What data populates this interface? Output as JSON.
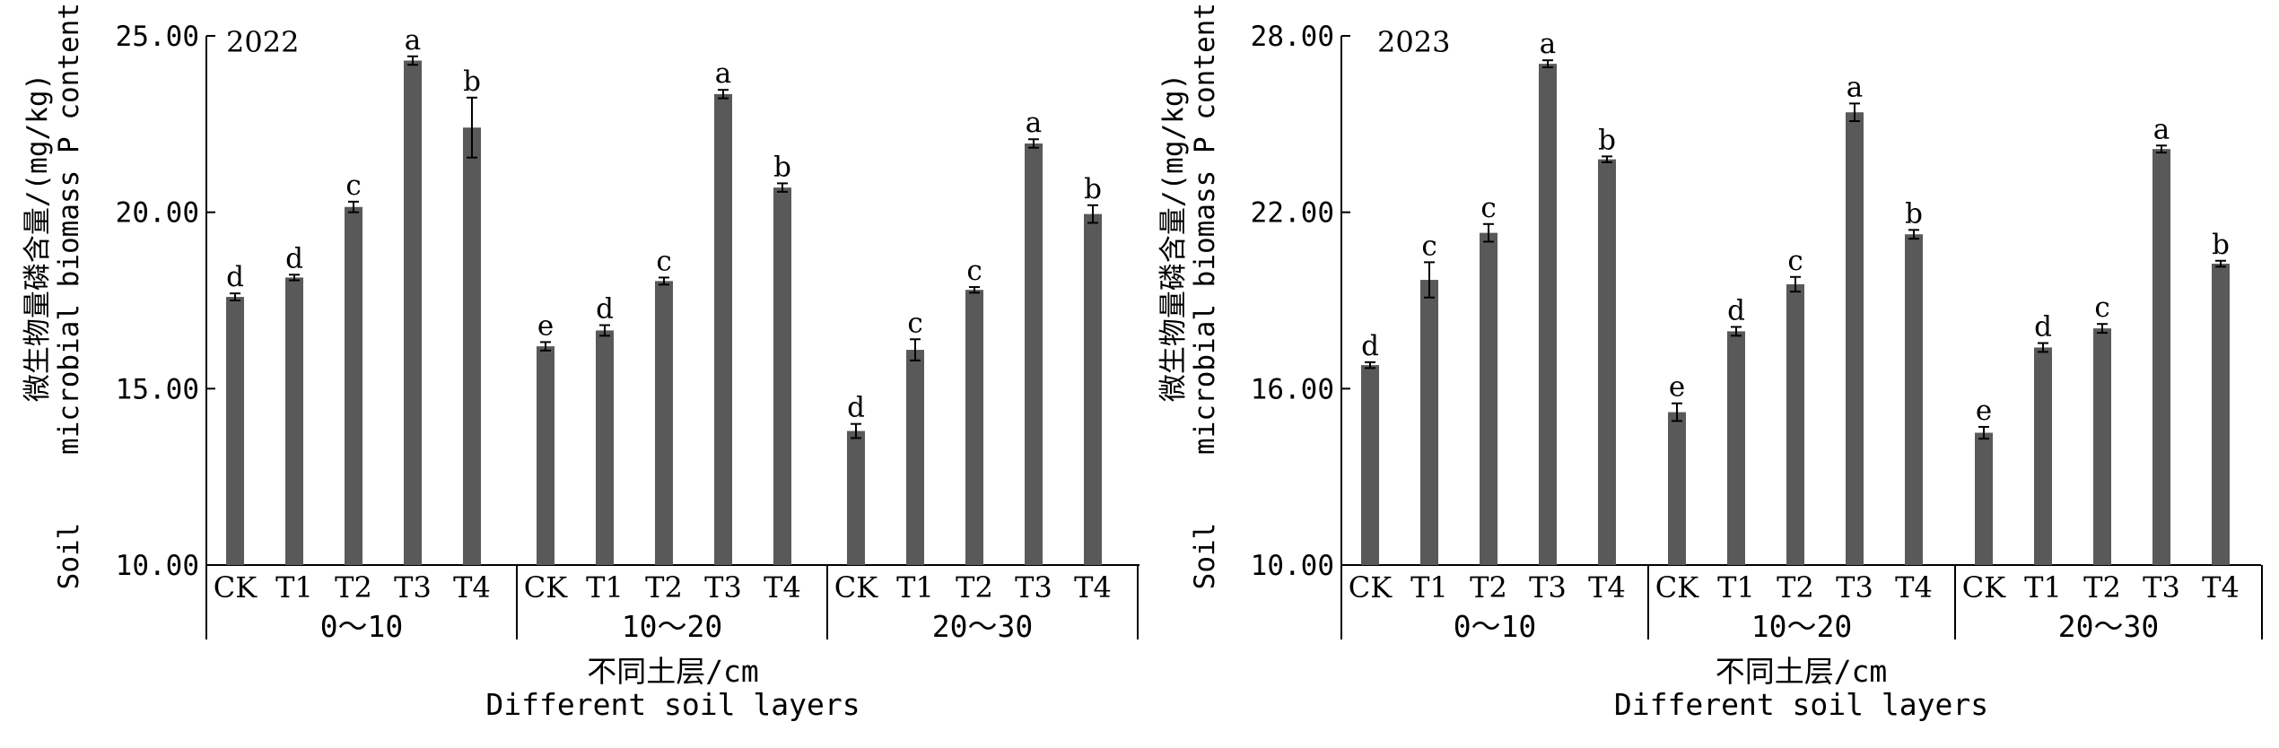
{
  "colors": {
    "bar": "#595959",
    "axis": "#000000",
    "error": "#000000"
  },
  "chart_data": [
    {
      "type": "bar",
      "annotation": "2022",
      "ylabel_cn": "微生物量磷含量/(mg/kg)",
      "ylabel_en_1": "microbial biomass P content",
      "ylabel_en_2": "Soil",
      "xlabel_cn": "不同土层/cm",
      "xlabel_en": "Different soil layers",
      "ylim": [
        10,
        25
      ],
      "yticks": [
        10,
        15,
        20,
        25
      ],
      "ytick_labels": [
        "10.00",
        "15.00",
        "20.00",
        "25.00"
      ],
      "groups": [
        {
          "label": "0～10",
          "categories": [
            "CK",
            "T1",
            "T2",
            "T3",
            "T4"
          ],
          "values": [
            17.6,
            18.15,
            20.15,
            24.3,
            22.4
          ],
          "errors": [
            0.1,
            0.08,
            0.15,
            0.12,
            0.85
          ],
          "letters": [
            "d",
            "d",
            "c",
            "a",
            "b"
          ]
        },
        {
          "label": "10～20",
          "categories": [
            "CK",
            "T1",
            "T2",
            "T3",
            "T4"
          ],
          "values": [
            16.2,
            16.65,
            18.05,
            23.35,
            20.7
          ],
          "errors": [
            0.12,
            0.15,
            0.1,
            0.12,
            0.12
          ],
          "letters": [
            "e",
            "d",
            "c",
            "a",
            "b"
          ]
        },
        {
          "label": "20～30",
          "categories": [
            "CK",
            "T1",
            "T2",
            "T3",
            "T4"
          ],
          "values": [
            13.8,
            16.1,
            17.8,
            21.95,
            19.95
          ],
          "errors": [
            0.2,
            0.3,
            0.08,
            0.12,
            0.25
          ],
          "letters": [
            "d",
            "c",
            "c",
            "a",
            "b"
          ]
        }
      ]
    },
    {
      "type": "bar",
      "annotation": "2023",
      "ylabel_cn": "微生物量磷含量/(mg/kg)",
      "ylabel_en_1": "microbial biomass P content",
      "ylabel_en_2": "Soil",
      "xlabel_cn": "不同土层/cm",
      "xlabel_en": "Different soil layers",
      "ylim": [
        10,
        28
      ],
      "yticks": [
        10,
        16,
        22,
        28
      ],
      "ytick_labels": [
        "10.00",
        "16.00",
        "22.00",
        "28.00"
      ],
      "groups": [
        {
          "label": "0～10",
          "categories": [
            "CK",
            "T1",
            "T2",
            "T3",
            "T4"
          ],
          "values": [
            16.8,
            19.7,
            21.3,
            27.05,
            23.8
          ],
          "errors": [
            0.1,
            0.6,
            0.3,
            0.12,
            0.1
          ],
          "letters": [
            "d",
            "c",
            "c",
            "a",
            "b"
          ]
        },
        {
          "label": "10～20",
          "categories": [
            "CK",
            "T1",
            "T2",
            "T3",
            "T4"
          ],
          "values": [
            15.2,
            17.95,
            19.55,
            25.4,
            21.25
          ],
          "errors": [
            0.3,
            0.15,
            0.25,
            0.3,
            0.15
          ],
          "letters": [
            "e",
            "d",
            "c",
            "a",
            "b"
          ]
        },
        {
          "label": "20～30",
          "categories": [
            "CK",
            "T1",
            "T2",
            "T3",
            "T4"
          ],
          "values": [
            14.5,
            17.4,
            18.05,
            24.15,
            20.25
          ],
          "errors": [
            0.2,
            0.15,
            0.15,
            0.12,
            0.1
          ],
          "letters": [
            "e",
            "d",
            "c",
            "a",
            "b"
          ]
        }
      ]
    }
  ]
}
